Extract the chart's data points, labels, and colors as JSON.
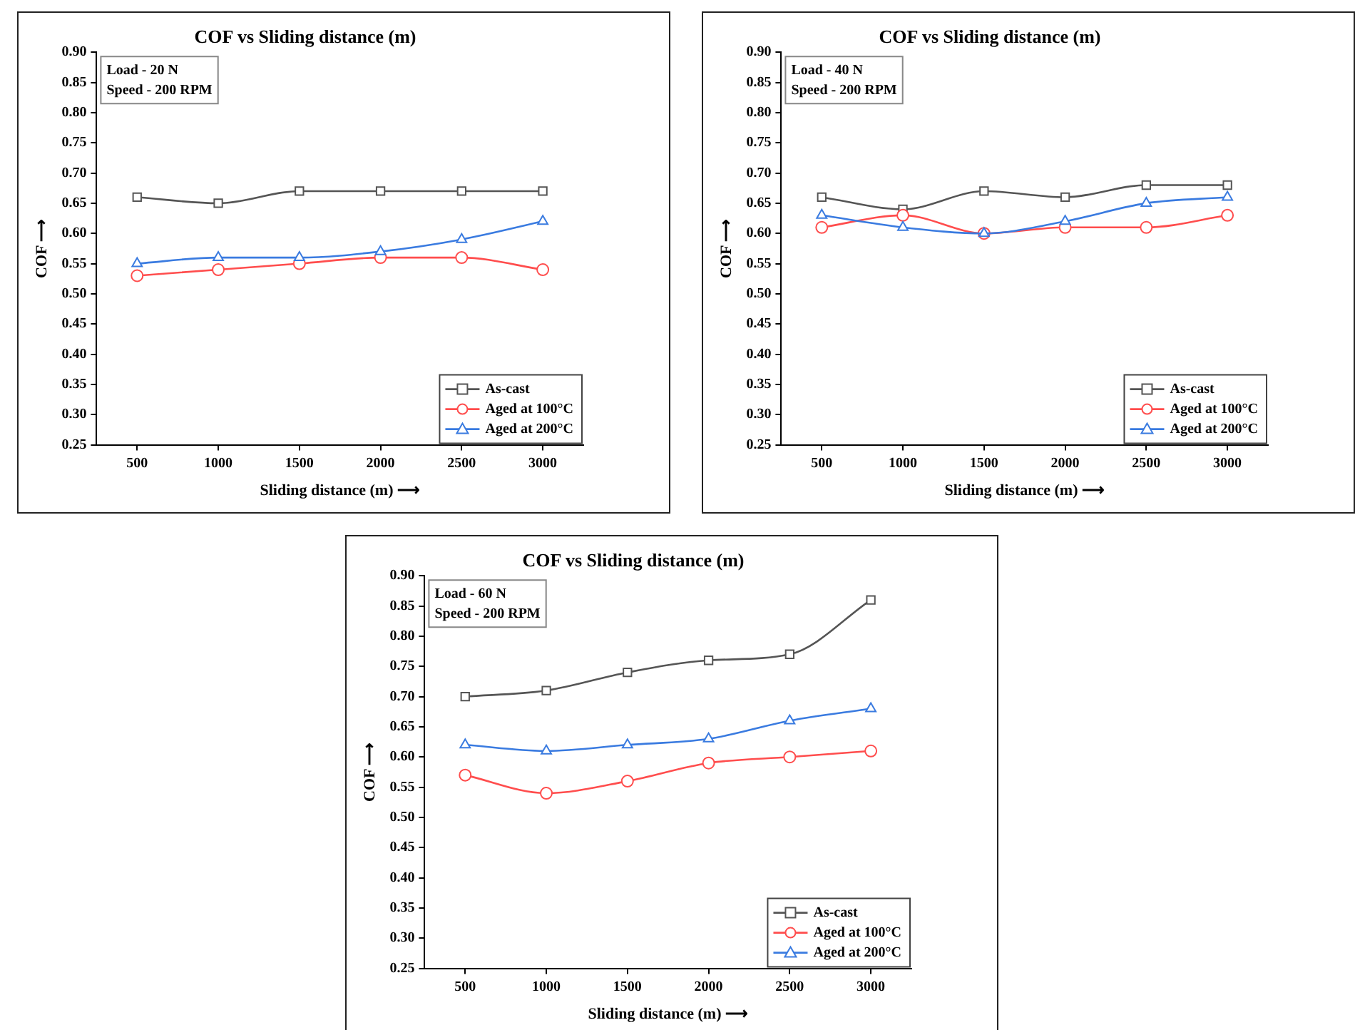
{
  "chart_data": [
    {
      "type": "line",
      "title": "COF vs Sliding distance (m)",
      "xlabel": "Sliding distance (m) ⟶",
      "ylabel": "COF ⟶",
      "annotations": [
        "Load - 20 N",
        "Speed - 200 RPM"
      ],
      "x": [
        500,
        1000,
        1500,
        2000,
        2500,
        3000
      ],
      "xlim": [
        250,
        3250
      ],
      "xticks": [
        500,
        1000,
        1500,
        2000,
        2500,
        3000
      ],
      "ylim": [
        0.25,
        0.9
      ],
      "yticks": [
        {
          "value": 0.25,
          "label": "0.25"
        },
        {
          "value": 0.3,
          "label": "0.30"
        },
        {
          "value": 0.35,
          "label": "0.35"
        },
        {
          "value": 0.4,
          "label": "0.40"
        },
        {
          "value": 0.45,
          "label": "0.45"
        },
        {
          "value": 0.5,
          "label": "0.50"
        },
        {
          "value": 0.55,
          "label": "0.55"
        },
        {
          "value": 0.6,
          "label": "0.60"
        },
        {
          "value": 0.65,
          "label": "0.65"
        },
        {
          "value": 0.7,
          "label": "0.70"
        },
        {
          "value": 0.75,
          "label": "0.75"
        },
        {
          "value": 0.8,
          "label": "0.80"
        },
        {
          "value": 0.85,
          "label": "0.85"
        },
        {
          "value": 0.9,
          "label": "0.90"
        }
      ],
      "grid": false,
      "legend": "bottom right",
      "series": [
        {
          "name": "As-cast",
          "color": "#555555",
          "marker": "square",
          "values": [
            0.66,
            0.65,
            0.67,
            0.67,
            0.67,
            0.67
          ]
        },
        {
          "name": "Aged at 100°C",
          "color": "#ff4d4d",
          "marker": "circle",
          "values": [
            0.53,
            0.54,
            0.55,
            0.56,
            0.56,
            0.54
          ]
        },
        {
          "name": "Aged at 200°C",
          "color": "#3a7be0",
          "marker": "triangle",
          "values": [
            0.55,
            0.56,
            0.56,
            0.57,
            0.59,
            0.62
          ]
        }
      ]
    },
    {
      "type": "line",
      "title": "COF vs Sliding distance (m)",
      "xlabel": "Sliding distance (m) ⟶",
      "ylabel": "COF ⟶",
      "annotations": [
        "Load - 40 N",
        "Speed - 200 RPM"
      ],
      "x": [
        500,
        1000,
        1500,
        2000,
        2500,
        3000
      ],
      "xlim": [
        250,
        3250
      ],
      "xticks": [
        500,
        1000,
        1500,
        2000,
        2500,
        3000
      ],
      "ylim": [
        0.25,
        0.9
      ],
      "yticks": [
        {
          "value": 0.25,
          "label": "0.25"
        },
        {
          "value": 0.3,
          "label": "0.30"
        },
        {
          "value": 0.35,
          "label": "0.35"
        },
        {
          "value": 0.4,
          "label": "0.40"
        },
        {
          "value": 0.45,
          "label": "0.45"
        },
        {
          "value": 0.5,
          "label": "0.50"
        },
        {
          "value": 0.55,
          "label": "0.55"
        },
        {
          "value": 0.6,
          "label": "0.60"
        },
        {
          "value": 0.65,
          "label": "0.65"
        },
        {
          "value": 0.7,
          "label": "0.70"
        },
        {
          "value": 0.75,
          "label": "0.75"
        },
        {
          "value": 0.8,
          "label": "0.80"
        },
        {
          "value": 0.85,
          "label": "0.85"
        },
        {
          "value": 0.9,
          "label": "0.90"
        }
      ],
      "grid": false,
      "legend": "bottom right",
      "series": [
        {
          "name": "As-cast",
          "color": "#555555",
          "marker": "square",
          "values": [
            0.66,
            0.64,
            0.67,
            0.66,
            0.68,
            0.68
          ]
        },
        {
          "name": "Aged at 100°C",
          "color": "#ff4d4d",
          "marker": "circle",
          "values": [
            0.61,
            0.63,
            0.6,
            0.61,
            0.61,
            0.63
          ]
        },
        {
          "name": "Aged at 200°C",
          "color": "#3a7be0",
          "marker": "triangle",
          "values": [
            0.63,
            0.61,
            0.6,
            0.62,
            0.65,
            0.66
          ]
        }
      ]
    },
    {
      "type": "line",
      "title": "COF vs Sliding distance (m)",
      "xlabel": "Sliding distance (m) ⟶",
      "ylabel": "COF ⟶",
      "annotations": [
        "Load - 60 N",
        "Speed - 200 RPM"
      ],
      "x": [
        500,
        1000,
        1500,
        2000,
        2500,
        3000
      ],
      "xlim": [
        250,
        3250
      ],
      "xticks": [
        500,
        1000,
        1500,
        2000,
        2500,
        3000
      ],
      "ylim": [
        0.25,
        0.9
      ],
      "yticks": [
        {
          "value": 0.25,
          "label": "0.25"
        },
        {
          "value": 0.3,
          "label": "0.30"
        },
        {
          "value": 0.35,
          "label": "0.35"
        },
        {
          "value": 0.4,
          "label": "0.40"
        },
        {
          "value": 0.45,
          "label": "0.45"
        },
        {
          "value": 0.5,
          "label": "0.50"
        },
        {
          "value": 0.55,
          "label": "0.55"
        },
        {
          "value": 0.6,
          "label": "0.60"
        },
        {
          "value": 0.65,
          "label": "0.65"
        },
        {
          "value": 0.7,
          "label": "0.70"
        },
        {
          "value": 0.75,
          "label": "0.75"
        },
        {
          "value": 0.8,
          "label": "0.80"
        },
        {
          "value": 0.85,
          "label": "0.85"
        },
        {
          "value": 0.9,
          "label": "0.90"
        }
      ],
      "grid": false,
      "legend": "bottom right",
      "series": [
        {
          "name": "As-cast",
          "color": "#555555",
          "marker": "square",
          "values": [
            0.7,
            0.71,
            0.74,
            0.76,
            0.77,
            0.86
          ]
        },
        {
          "name": "Aged at 100°C",
          "color": "#ff4d4d",
          "marker": "circle",
          "values": [
            0.57,
            0.54,
            0.56,
            0.59,
            0.6,
            0.61
          ]
        },
        {
          "name": "Aged at 200°C",
          "color": "#3a7be0",
          "marker": "triangle",
          "values": [
            0.62,
            0.61,
            0.62,
            0.63,
            0.66,
            0.68
          ]
        }
      ]
    }
  ]
}
